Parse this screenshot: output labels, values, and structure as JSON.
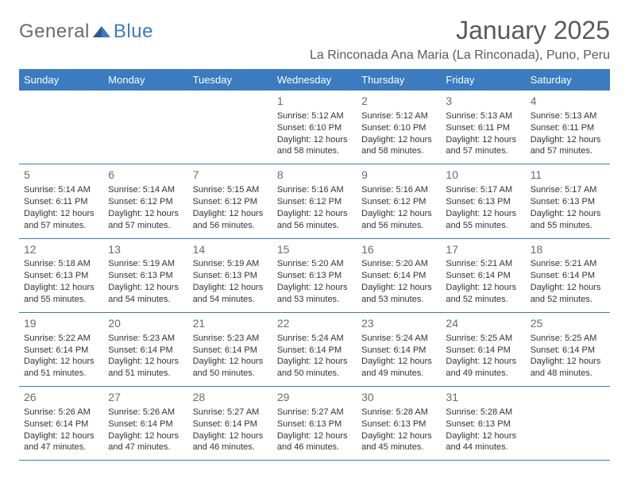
{
  "logo": {
    "part1": "General",
    "part2": "Blue",
    "text_color_gray": "#6b6b6b",
    "text_color_blue": "#3b7bbf"
  },
  "title": "January 2025",
  "location": "La Rinconada Ana Maria (La Rinconada), Puno, Peru",
  "colors": {
    "header_bg": "#3b7bbf",
    "header_text": "#ffffff",
    "border": "#3b7bbf",
    "text": "#333333",
    "daynum": "#6b6b6b",
    "background": "#ffffff"
  },
  "dayHeaders": [
    "Sunday",
    "Monday",
    "Tuesday",
    "Wednesday",
    "Thursday",
    "Friday",
    "Saturday"
  ],
  "weeks": [
    [
      null,
      null,
      null,
      {
        "n": "1",
        "sr": "5:12 AM",
        "ss": "6:10 PM",
        "dl": "12 hours and 58 minutes."
      },
      {
        "n": "2",
        "sr": "5:12 AM",
        "ss": "6:10 PM",
        "dl": "12 hours and 58 minutes."
      },
      {
        "n": "3",
        "sr": "5:13 AM",
        "ss": "6:11 PM",
        "dl": "12 hours and 57 minutes."
      },
      {
        "n": "4",
        "sr": "5:13 AM",
        "ss": "6:11 PM",
        "dl": "12 hours and 57 minutes."
      }
    ],
    [
      {
        "n": "5",
        "sr": "5:14 AM",
        "ss": "6:11 PM",
        "dl": "12 hours and 57 minutes."
      },
      {
        "n": "6",
        "sr": "5:14 AM",
        "ss": "6:12 PM",
        "dl": "12 hours and 57 minutes."
      },
      {
        "n": "7",
        "sr": "5:15 AM",
        "ss": "6:12 PM",
        "dl": "12 hours and 56 minutes."
      },
      {
        "n": "8",
        "sr": "5:16 AM",
        "ss": "6:12 PM",
        "dl": "12 hours and 56 minutes."
      },
      {
        "n": "9",
        "sr": "5:16 AM",
        "ss": "6:12 PM",
        "dl": "12 hours and 56 minutes."
      },
      {
        "n": "10",
        "sr": "5:17 AM",
        "ss": "6:13 PM",
        "dl": "12 hours and 55 minutes."
      },
      {
        "n": "11",
        "sr": "5:17 AM",
        "ss": "6:13 PM",
        "dl": "12 hours and 55 minutes."
      }
    ],
    [
      {
        "n": "12",
        "sr": "5:18 AM",
        "ss": "6:13 PM",
        "dl": "12 hours and 55 minutes."
      },
      {
        "n": "13",
        "sr": "5:19 AM",
        "ss": "6:13 PM",
        "dl": "12 hours and 54 minutes."
      },
      {
        "n": "14",
        "sr": "5:19 AM",
        "ss": "6:13 PM",
        "dl": "12 hours and 54 minutes."
      },
      {
        "n": "15",
        "sr": "5:20 AM",
        "ss": "6:13 PM",
        "dl": "12 hours and 53 minutes."
      },
      {
        "n": "16",
        "sr": "5:20 AM",
        "ss": "6:14 PM",
        "dl": "12 hours and 53 minutes."
      },
      {
        "n": "17",
        "sr": "5:21 AM",
        "ss": "6:14 PM",
        "dl": "12 hours and 52 minutes."
      },
      {
        "n": "18",
        "sr": "5:21 AM",
        "ss": "6:14 PM",
        "dl": "12 hours and 52 minutes."
      }
    ],
    [
      {
        "n": "19",
        "sr": "5:22 AM",
        "ss": "6:14 PM",
        "dl": "12 hours and 51 minutes."
      },
      {
        "n": "20",
        "sr": "5:23 AM",
        "ss": "6:14 PM",
        "dl": "12 hours and 51 minutes."
      },
      {
        "n": "21",
        "sr": "5:23 AM",
        "ss": "6:14 PM",
        "dl": "12 hours and 50 minutes."
      },
      {
        "n": "22",
        "sr": "5:24 AM",
        "ss": "6:14 PM",
        "dl": "12 hours and 50 minutes."
      },
      {
        "n": "23",
        "sr": "5:24 AM",
        "ss": "6:14 PM",
        "dl": "12 hours and 49 minutes."
      },
      {
        "n": "24",
        "sr": "5:25 AM",
        "ss": "6:14 PM",
        "dl": "12 hours and 49 minutes."
      },
      {
        "n": "25",
        "sr": "5:25 AM",
        "ss": "6:14 PM",
        "dl": "12 hours and 48 minutes."
      }
    ],
    [
      {
        "n": "26",
        "sr": "5:26 AM",
        "ss": "6:14 PM",
        "dl": "12 hours and 47 minutes."
      },
      {
        "n": "27",
        "sr": "5:26 AM",
        "ss": "6:14 PM",
        "dl": "12 hours and 47 minutes."
      },
      {
        "n": "28",
        "sr": "5:27 AM",
        "ss": "6:14 PM",
        "dl": "12 hours and 46 minutes."
      },
      {
        "n": "29",
        "sr": "5:27 AM",
        "ss": "6:13 PM",
        "dl": "12 hours and 46 minutes."
      },
      {
        "n": "30",
        "sr": "5:28 AM",
        "ss": "6:13 PM",
        "dl": "12 hours and 45 minutes."
      },
      {
        "n": "31",
        "sr": "5:28 AM",
        "ss": "6:13 PM",
        "dl": "12 hours and 44 minutes."
      },
      null
    ]
  ],
  "labels": {
    "sunrise": "Sunrise: ",
    "sunset": "Sunset: ",
    "daylight": "Daylight: "
  }
}
